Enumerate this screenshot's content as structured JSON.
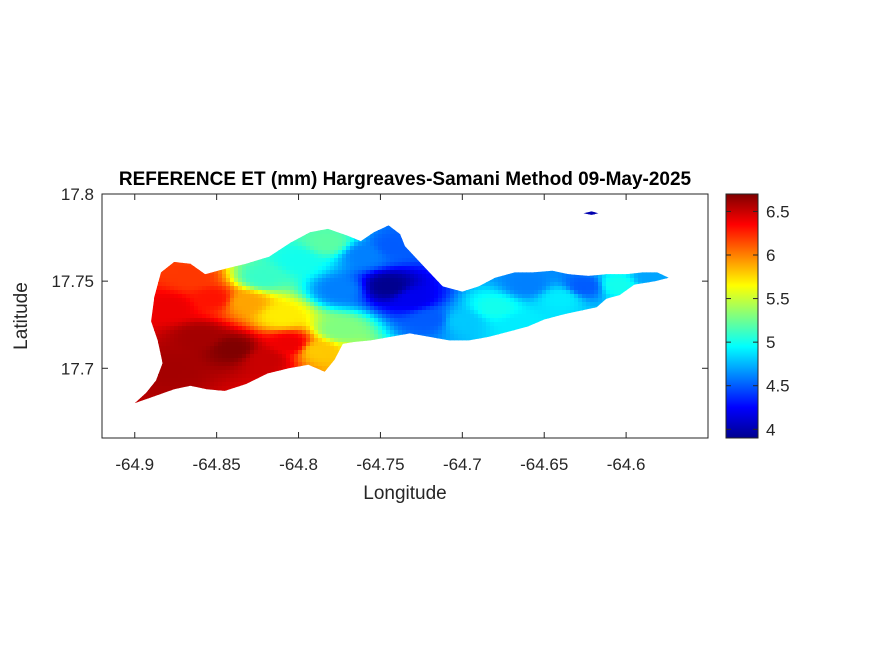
{
  "chart_data": {
    "type": "heatmap",
    "title": "REFERENCE ET (mm) Hargreaves-Samani Method  09-May-2025",
    "xlabel": "Longitude",
    "ylabel": "Latitude",
    "xlim": [
      -64.92,
      -64.55
    ],
    "ylim": [
      17.66,
      17.8
    ],
    "xticks": [
      -64.9,
      -64.85,
      -64.8,
      -64.75,
      -64.7,
      -64.65,
      -64.6
    ],
    "xtick_labels": [
      "-64.9",
      "-64.85",
      "-64.8",
      "-64.75",
      "-64.7",
      "-64.65",
      "-64.6"
    ],
    "yticks": [
      17.7,
      17.75,
      17.8
    ],
    "ytick_labels": [
      "17.7",
      "17.75",
      "17.8"
    ],
    "colorbar": {
      "colormap": "jet",
      "range": [
        3.9,
        6.7
      ],
      "ticks": [
        4,
        4.5,
        5,
        5.5,
        6,
        6.5
      ],
      "tick_labels": [
        "4",
        "4.5",
        "5",
        "5.5",
        "6",
        "6.5"
      ]
    },
    "colors": [
      "#00008f",
      "#0000ff",
      "#0080ff",
      "#00ffff",
      "#80ff80",
      "#ffff00",
      "#ff8000",
      "#ff0000",
      "#800000"
    ],
    "grid": false,
    "island_outline": [
      [
        -64.9,
        17.68
      ],
      [
        -64.893,
        17.686
      ],
      [
        -64.887,
        17.693
      ],
      [
        -64.883,
        17.703
      ],
      [
        -64.886,
        17.716
      ],
      [
        -64.89,
        17.727
      ],
      [
        -64.888,
        17.741
      ],
      [
        -64.884,
        17.755
      ],
      [
        -64.876,
        17.761
      ],
      [
        -64.866,
        17.76
      ],
      [
        -64.857,
        17.754
      ],
      [
        -64.845,
        17.757
      ],
      [
        -64.832,
        17.76
      ],
      [
        -64.818,
        17.764
      ],
      [
        -64.805,
        17.772
      ],
      [
        -64.793,
        17.778
      ],
      [
        -64.782,
        17.78
      ],
      [
        -64.77,
        17.776
      ],
      [
        -64.762,
        17.773
      ],
      [
        -64.754,
        17.778
      ],
      [
        -64.745,
        17.782
      ],
      [
        -64.738,
        17.777
      ],
      [
        -64.735,
        17.77
      ],
      [
        -64.729,
        17.764
      ],
      [
        -64.721,
        17.756
      ],
      [
        -64.712,
        17.747
      ],
      [
        -64.7,
        17.744
      ],
      [
        -64.69,
        17.747
      ],
      [
        -64.68,
        17.752
      ],
      [
        -64.668,
        17.755
      ],
      [
        -64.657,
        17.755
      ],
      [
        -64.645,
        17.756
      ],
      [
        -64.635,
        17.754
      ],
      [
        -64.623,
        17.753
      ],
      [
        -64.612,
        17.754
      ],
      [
        -64.6,
        17.754
      ],
      [
        -64.59,
        17.755
      ],
      [
        -64.581,
        17.755
      ],
      [
        -64.574,
        17.752
      ],
      [
        -64.582,
        17.75
      ],
      [
        -64.595,
        17.748
      ],
      [
        -64.604,
        17.742
      ],
      [
        -64.612,
        17.74
      ],
      [
        -64.618,
        17.735
      ],
      [
        -64.628,
        17.733
      ],
      [
        -64.638,
        17.731
      ],
      [
        -64.65,
        17.728
      ],
      [
        -64.66,
        17.724
      ],
      [
        -64.672,
        17.721
      ],
      [
        -64.684,
        17.718
      ],
      [
        -64.696,
        17.716
      ],
      [
        -64.708,
        17.716
      ],
      [
        -64.72,
        17.718
      ],
      [
        -64.732,
        17.72
      ],
      [
        -64.744,
        17.718
      ],
      [
        -64.756,
        17.716
      ],
      [
        -64.767,
        17.715
      ],
      [
        -64.773,
        17.714
      ],
      [
        -64.778,
        17.705
      ],
      [
        -64.784,
        17.698
      ],
      [
        -64.794,
        17.702
      ],
      [
        -64.806,
        17.7
      ],
      [
        -64.819,
        17.697
      ],
      [
        -64.832,
        17.691
      ],
      [
        -64.845,
        17.687
      ],
      [
        -64.856,
        17.688
      ],
      [
        -64.866,
        17.69
      ],
      [
        -64.876,
        17.688
      ],
      [
        -64.888,
        17.684
      ],
      [
        -64.9,
        17.68
      ]
    ],
    "islet_outline": [
      [
        -64.626,
        17.789
      ],
      [
        -64.621,
        17.79
      ],
      [
        -64.617,
        17.789
      ],
      [
        -64.621,
        17.788
      ],
      [
        -64.626,
        17.789
      ]
    ],
    "value_sources": [
      {
        "lon": -64.878,
        "lat": 17.7,
        "value": 6.6
      },
      {
        "lon": -64.878,
        "lat": 17.735,
        "value": 6.4
      },
      {
        "lon": -64.86,
        "lat": 17.718,
        "value": 6.6
      },
      {
        "lon": -64.84,
        "lat": 17.711,
        "value": 6.7
      },
      {
        "lon": -64.82,
        "lat": 17.705,
        "value": 6.5
      },
      {
        "lon": -64.805,
        "lat": 17.714,
        "value": 6.4
      },
      {
        "lon": -64.865,
        "lat": 17.752,
        "value": 6.2
      },
      {
        "lon": -64.852,
        "lat": 17.74,
        "value": 6.3
      },
      {
        "lon": -64.832,
        "lat": 17.738,
        "value": 5.9
      },
      {
        "lon": -64.81,
        "lat": 17.73,
        "value": 5.7
      },
      {
        "lon": -64.788,
        "lat": 17.71,
        "value": 5.8
      },
      {
        "lon": -64.775,
        "lat": 17.722,
        "value": 5.3
      },
      {
        "lon": -64.822,
        "lat": 17.752,
        "value": 5.1
      },
      {
        "lon": -64.8,
        "lat": 17.762,
        "value": 5.0
      },
      {
        "lon": -64.782,
        "lat": 17.772,
        "value": 5.2
      },
      {
        "lon": -64.775,
        "lat": 17.745,
        "value": 4.6
      },
      {
        "lon": -64.76,
        "lat": 17.765,
        "value": 4.6
      },
      {
        "lon": -64.745,
        "lat": 17.747,
        "value": 3.9
      },
      {
        "lon": -64.73,
        "lat": 17.74,
        "value": 4.2
      },
      {
        "lon": -64.742,
        "lat": 17.77,
        "value": 4.5
      },
      {
        "lon": -64.72,
        "lat": 17.728,
        "value": 4.5
      },
      {
        "lon": -64.7,
        "lat": 17.727,
        "value": 4.8
      },
      {
        "lon": -64.68,
        "lat": 17.735,
        "value": 5.0
      },
      {
        "lon": -64.665,
        "lat": 17.725,
        "value": 4.9
      },
      {
        "lon": -64.66,
        "lat": 17.748,
        "value": 4.6
      },
      {
        "lon": -64.64,
        "lat": 17.74,
        "value": 4.9
      },
      {
        "lon": -64.625,
        "lat": 17.747,
        "value": 4.5
      },
      {
        "lon": -64.605,
        "lat": 17.748,
        "value": 5.0
      },
      {
        "lon": -64.585,
        "lat": 17.752,
        "value": 4.7
      },
      {
        "lon": -64.621,
        "lat": 17.789,
        "value": 4.0
      }
    ]
  }
}
